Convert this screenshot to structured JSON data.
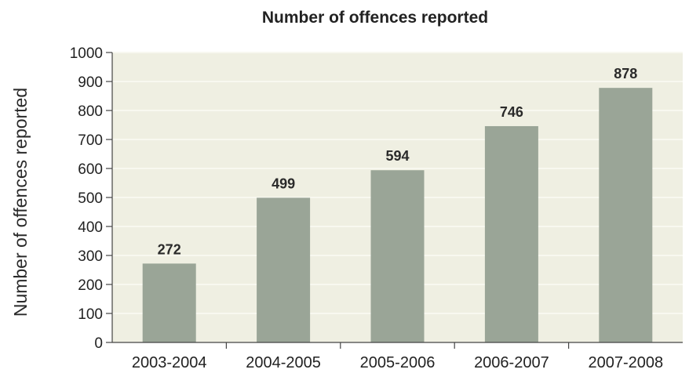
{
  "chart_data": {
    "type": "bar",
    "title": "Number of offences reported",
    "xlabel": "",
    "ylabel": "Number of offences reported",
    "categories": [
      "2003-2004",
      "2004-2005",
      "2005-2006",
      "2006-2007",
      "2007-2008"
    ],
    "values": [
      272,
      499,
      594,
      746,
      878
    ],
    "data_labels": [
      "272",
      "499",
      "594",
      "746",
      "878"
    ],
    "ylim": [
      0,
      1000
    ],
    "yticks": [
      0,
      100,
      200,
      300,
      400,
      500,
      600,
      700,
      800,
      900,
      1000
    ],
    "grid": true,
    "legend": "none",
    "colors": {
      "bar": "#9aa597",
      "plot_background": "#efefe2",
      "grid": "#f8f8f0",
      "axis": "#444444"
    }
  }
}
